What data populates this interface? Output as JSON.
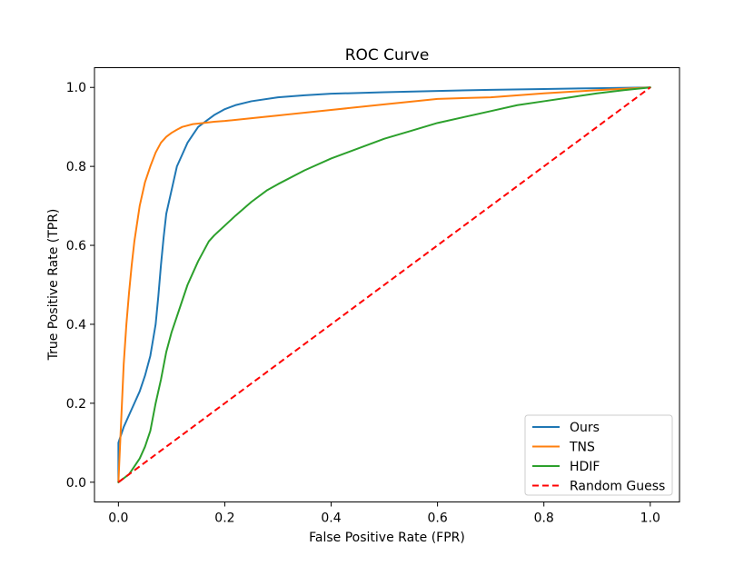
{
  "chart_data": {
    "type": "line",
    "title": "ROC Curve",
    "xlabel": "False Positive Rate (FPR)",
    "ylabel": "True Positive Rate (TPR)",
    "xlim": [
      -0.045,
      1.055
    ],
    "ylim": [
      -0.05,
      1.05
    ],
    "grid": false,
    "legend_position": "bottom-right",
    "x_ticks": [
      0.0,
      0.2,
      0.4,
      0.6,
      0.8,
      1.0
    ],
    "y_ticks": [
      0.0,
      0.2,
      0.4,
      0.6,
      0.8,
      1.0
    ],
    "x_tick_labels": [
      "0.0",
      "0.2",
      "0.4",
      "0.6",
      "0.8",
      "1.0"
    ],
    "y_tick_labels": [
      "0.0",
      "0.2",
      "0.4",
      "0.6",
      "0.8",
      "1.0"
    ],
    "series": [
      {
        "name": "Ours",
        "color": "#1f77b4",
        "dashed": false,
        "x": [
          0.0,
          0.0,
          0.005,
          0.01,
          0.02,
          0.03,
          0.04,
          0.05,
          0.06,
          0.07,
          0.075,
          0.08,
          0.085,
          0.09,
          0.1,
          0.11,
          0.12,
          0.13,
          0.14,
          0.15,
          0.16,
          0.18,
          0.2,
          0.22,
          0.25,
          0.3,
          0.35,
          0.4,
          0.5,
          0.6,
          0.7,
          0.8,
          0.9,
          1.0
        ],
        "y": [
          0.0,
          0.1,
          0.12,
          0.14,
          0.17,
          0.2,
          0.23,
          0.27,
          0.32,
          0.4,
          0.47,
          0.55,
          0.62,
          0.68,
          0.74,
          0.8,
          0.83,
          0.86,
          0.88,
          0.9,
          0.91,
          0.93,
          0.945,
          0.955,
          0.965,
          0.975,
          0.98,
          0.984,
          0.988,
          0.991,
          0.994,
          0.996,
          0.998,
          1.0
        ]
      },
      {
        "name": "TNS",
        "color": "#ff7f0e",
        "dashed": false,
        "x": [
          0.0,
          0.005,
          0.01,
          0.015,
          0.02,
          0.025,
          0.03,
          0.04,
          0.05,
          0.06,
          0.07,
          0.08,
          0.09,
          0.1,
          0.11,
          0.12,
          0.14,
          0.16,
          0.18,
          0.2,
          0.3,
          0.4,
          0.5,
          0.6,
          0.7,
          0.8,
          0.9,
          1.0
        ],
        "y": [
          0.0,
          0.15,
          0.3,
          0.4,
          0.48,
          0.55,
          0.61,
          0.7,
          0.76,
          0.8,
          0.835,
          0.86,
          0.875,
          0.885,
          0.893,
          0.9,
          0.907,
          0.91,
          0.913,
          0.915,
          0.929,
          0.943,
          0.957,
          0.971,
          0.975,
          0.985,
          0.993,
          1.0
        ]
      },
      {
        "name": "HDIF",
        "color": "#2ca02c",
        "dashed": false,
        "x": [
          0.0,
          0.01,
          0.02,
          0.03,
          0.04,
          0.05,
          0.06,
          0.07,
          0.08,
          0.09,
          0.1,
          0.11,
          0.12,
          0.13,
          0.14,
          0.15,
          0.16,
          0.17,
          0.18,
          0.2,
          0.22,
          0.25,
          0.28,
          0.3,
          0.35,
          0.4,
          0.45,
          0.5,
          0.55,
          0.6,
          0.65,
          0.7,
          0.75,
          0.8,
          0.85,
          0.9,
          0.95,
          1.0
        ],
        "y": [
          0.0,
          0.01,
          0.02,
          0.04,
          0.06,
          0.09,
          0.13,
          0.2,
          0.26,
          0.33,
          0.38,
          0.42,
          0.46,
          0.5,
          0.53,
          0.56,
          0.585,
          0.61,
          0.625,
          0.65,
          0.675,
          0.71,
          0.74,
          0.755,
          0.79,
          0.82,
          0.845,
          0.87,
          0.89,
          0.91,
          0.925,
          0.94,
          0.955,
          0.965,
          0.975,
          0.985,
          0.993,
          1.0
        ]
      },
      {
        "name": "Random Guess",
        "color": "#ff0000",
        "dashed": true,
        "x": [
          0.0,
          1.0
        ],
        "y": [
          0.0,
          1.0
        ]
      }
    ]
  }
}
